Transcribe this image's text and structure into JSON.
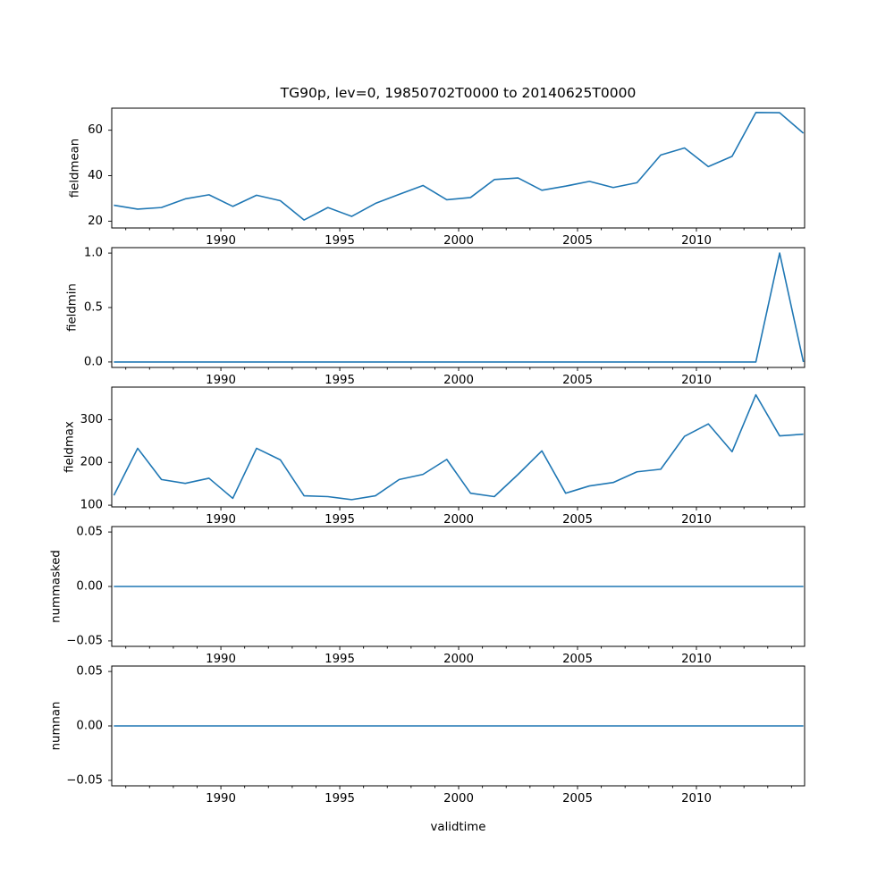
{
  "title": "TG90p, lev=0, 19850702T0000 to 20140625T0000",
  "xlabel": "validtime",
  "colors": {
    "line": "#1f77b4",
    "axis": "#000000",
    "background": "#ffffff"
  },
  "chart_data": {
    "type": "line",
    "title": "TG90p, lev=0, 19850702T0000 to 20140625T0000",
    "xlabel": "validtime",
    "grid": false,
    "legend": false,
    "x": [
      1985.5,
      1986.5,
      1987.5,
      1988.5,
      1989.5,
      1990.5,
      1991.5,
      1992.5,
      1993.5,
      1994.5,
      1995.5,
      1996.5,
      1997.5,
      1998.5,
      1999.5,
      2000.5,
      2001.5,
      2002.5,
      2003.5,
      2004.5,
      2005.5,
      2006.5,
      2007.5,
      2008.5,
      2009.5,
      2010.5,
      2011.5,
      2012.5,
      2013.5,
      2014.5
    ],
    "xlim": [
      1985.41,
      2014.55
    ],
    "xticks": [
      1990,
      1995,
      2000,
      2005,
      2010
    ],
    "xtick_labels": [
      "1990",
      "1995",
      "2000",
      "2005",
      "2010"
    ],
    "minor_xtick_years": [
      1986,
      1987,
      1988,
      1989,
      1991,
      1992,
      1993,
      1994,
      1996,
      1997,
      1998,
      1999,
      2001,
      2002,
      2003,
      2004,
      2006,
      2007,
      2008,
      2009,
      2011,
      2012,
      2013,
      2014
    ],
    "panels": [
      {
        "ylabel": "fieldmean",
        "ylim": [
          17.0,
          69.7
        ],
        "yticks": [
          20,
          40,
          60
        ],
        "ytick_labels": [
          "20",
          "40",
          "60"
        ],
        "values": [
          27.0,
          25.3,
          26.0,
          29.8,
          31.6,
          26.5,
          31.4,
          29.0,
          20.5,
          26.0,
          22.1,
          27.8,
          31.8,
          35.7,
          29.4,
          30.4,
          38.3,
          39.0,
          33.6,
          35.4,
          37.5,
          34.8,
          36.9,
          49.1,
          52.2,
          44.0,
          48.5,
          67.8,
          67.7,
          58.7
        ]
      },
      {
        "ylabel": "fieldmin",
        "ylim": [
          -0.05,
          1.05
        ],
        "yticks": [
          0.0,
          0.5,
          1.0
        ],
        "ytick_labels": [
          "0.0",
          "0.5",
          "1.0"
        ],
        "values": [
          0,
          0,
          0,
          0,
          0,
          0,
          0,
          0,
          0,
          0,
          0,
          0,
          0,
          0,
          0,
          0,
          0,
          0,
          0,
          0,
          0,
          0,
          0,
          0,
          0,
          0,
          0,
          0,
          1.0,
          0
        ]
      },
      {
        "ylabel": "fieldmax",
        "ylim": [
          96,
          376
        ],
        "yticks": [
          100,
          200,
          300
        ],
        "ytick_labels": [
          "100",
          "200",
          "300"
        ],
        "values": [
          123,
          233,
          160,
          151,
          163,
          116,
          233,
          206,
          122,
          120,
          113,
          122,
          160,
          172,
          207,
          128,
          120,
          172,
          227,
          128,
          145,
          153,
          178,
          184,
          261,
          290,
          225,
          358,
          262,
          266
        ]
      },
      {
        "ylabel": "nummasked",
        "ylim": [
          -0.055,
          0.055
        ],
        "yticks": [
          -0.05,
          0.0,
          0.05
        ],
        "ytick_labels": [
          "−0.05",
          "0.00",
          "0.05"
        ],
        "values": [
          0,
          0,
          0,
          0,
          0,
          0,
          0,
          0,
          0,
          0,
          0,
          0,
          0,
          0,
          0,
          0,
          0,
          0,
          0,
          0,
          0,
          0,
          0,
          0,
          0,
          0,
          0,
          0,
          0,
          0
        ]
      },
      {
        "ylabel": "numnan",
        "ylim": [
          -0.055,
          0.055
        ],
        "yticks": [
          -0.05,
          0.0,
          0.05
        ],
        "ytick_labels": [
          "−0.05",
          "0.00",
          "0.05"
        ],
        "values": [
          0,
          0,
          0,
          0,
          0,
          0,
          0,
          0,
          0,
          0,
          0,
          0,
          0,
          0,
          0,
          0,
          0,
          0,
          0,
          0,
          0,
          0,
          0,
          0,
          0,
          0,
          0,
          0,
          0,
          0
        ]
      }
    ]
  }
}
